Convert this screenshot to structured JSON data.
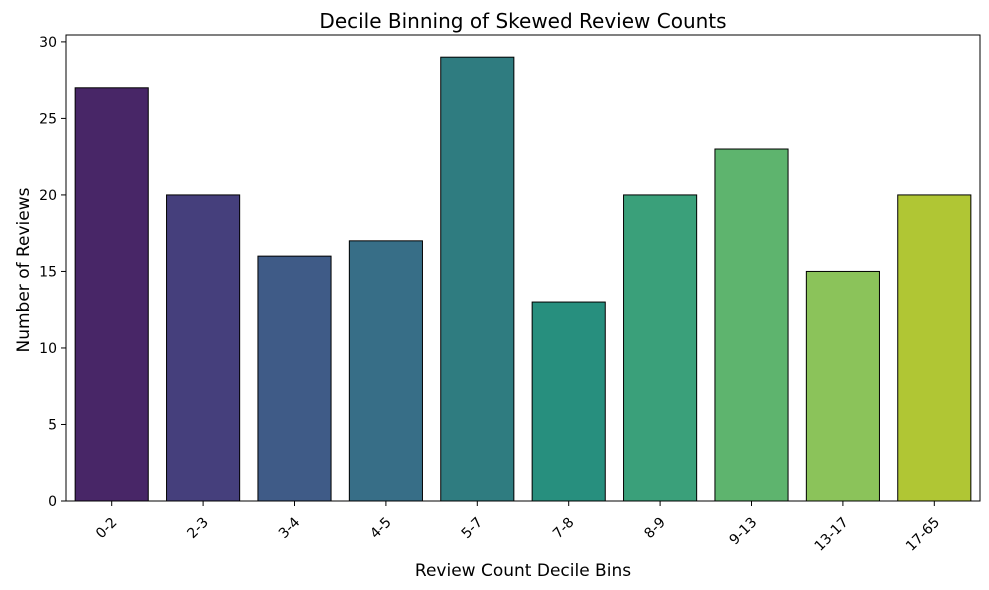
{
  "chart_data": {
    "type": "bar",
    "title": "Decile Binning of Skewed Review Counts",
    "xlabel": "Review Count Decile Bins",
    "ylabel": "Number of Reviews",
    "categories": [
      "0-2",
      "2-3",
      "3-4",
      "4-5",
      "5-7",
      "7-8",
      "8-9",
      "9-13",
      "13-17",
      "17-65"
    ],
    "values": [
      27,
      20,
      16,
      17,
      29,
      13,
      20,
      23,
      15,
      20
    ],
    "colors": [
      "#482667",
      "#453f7c",
      "#3f5b87",
      "#376e87",
      "#2f7c80",
      "#278f7e",
      "#3aa07a",
      "#5eb46e",
      "#8bc35a",
      "#b0c634"
    ],
    "yticks": [
      0,
      5,
      10,
      15,
      20,
      25,
      30
    ],
    "ylim": [
      0,
      30.45
    ],
    "grid": false,
    "x_tick_rotation": -45
  }
}
